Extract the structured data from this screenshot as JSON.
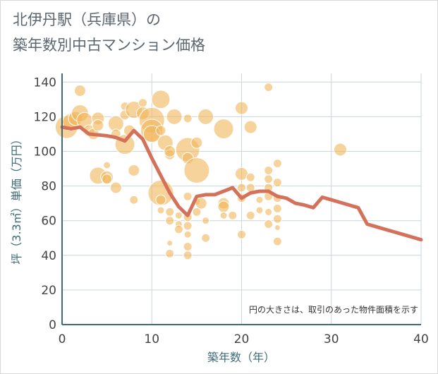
{
  "title_lines": [
    "北伊丹駅（兵庫県）の",
    "築年数別中古マンション価格"
  ],
  "chart_data": {
    "type": "scatter",
    "xlabel": "築年数（年）",
    "ylabel": "坪（3.3㎡）単価（万円）",
    "xlim": [
      0,
      40
    ],
    "ylim": [
      0,
      145
    ],
    "xticks": [
      0,
      10,
      20,
      30,
      40
    ],
    "yticks": [
      0,
      20,
      40,
      60,
      80,
      100,
      120,
      140
    ],
    "grid": true,
    "note": "円の大きさは、取引のあった物件面積を示す",
    "colors": {
      "bubble": "#f2b65a",
      "line": "#d4715a",
      "axis": "#3d6b7a"
    },
    "bubbles": [
      {
        "x": 0.5,
        "y": 114,
        "s": 16
      },
      {
        "x": 1,
        "y": 117,
        "s": 12
      },
      {
        "x": 1.5,
        "y": 119,
        "s": 10
      },
      {
        "x": 2,
        "y": 135,
        "s": 8
      },
      {
        "x": 2,
        "y": 122,
        "s": 12
      },
      {
        "x": 2.5,
        "y": 118,
        "s": 11
      },
      {
        "x": 3,
        "y": 112,
        "s": 8
      },
      {
        "x": 3.5,
        "y": 110,
        "s": 8
      },
      {
        "x": 4,
        "y": 119,
        "s": 9
      },
      {
        "x": 4,
        "y": 115,
        "s": 8
      },
      {
        "x": 4,
        "y": 86,
        "s": 12
      },
      {
        "x": 5,
        "y": 85,
        "s": 9
      },
      {
        "x": 5,
        "y": 84,
        "s": 7
      },
      {
        "x": 5,
        "y": 92,
        "s": 5
      },
      {
        "x": 6,
        "y": 79,
        "s": 8
      },
      {
        "x": 6,
        "y": 116,
        "s": 11
      },
      {
        "x": 6,
        "y": 110,
        "s": 7
      },
      {
        "x": 7,
        "y": 126,
        "s": 6
      },
      {
        "x": 7,
        "y": 121,
        "s": 7
      },
      {
        "x": 7,
        "y": 104,
        "s": 14
      },
      {
        "x": 7.5,
        "y": 112,
        "s": 8
      },
      {
        "x": 8,
        "y": 124,
        "s": 12
      },
      {
        "x": 8,
        "y": 89,
        "s": 8
      },
      {
        "x": 8,
        "y": 72,
        "s": 6
      },
      {
        "x": 9,
        "y": 128,
        "s": 6
      },
      {
        "x": 9,
        "y": 122,
        "s": 9
      },
      {
        "x": 10,
        "y": 118,
        "s": 18
      },
      {
        "x": 10,
        "y": 112,
        "s": 16
      },
      {
        "x": 10,
        "y": 110,
        "s": 12
      },
      {
        "x": 11,
        "y": 130,
        "s": 13
      },
      {
        "x": 11,
        "y": 112,
        "s": 7
      },
      {
        "x": 11,
        "y": 76,
        "s": 18
      },
      {
        "x": 11,
        "y": 72,
        "s": 7
      },
      {
        "x": 11,
        "y": 66,
        "s": 5
      },
      {
        "x": 11.5,
        "y": 105,
        "s": 11
      },
      {
        "x": 12,
        "y": 98,
        "s": 7
      },
      {
        "x": 12,
        "y": 100,
        "s": 8
      },
      {
        "x": 12,
        "y": 65,
        "s": 6
      },
      {
        "x": 12,
        "y": 60,
        "s": 6
      },
      {
        "x": 12,
        "y": 47,
        "s": 4
      },
      {
        "x": 12,
        "y": 41,
        "s": 6
      },
      {
        "x": 12.5,
        "y": 120,
        "s": 11
      },
      {
        "x": 13,
        "y": 63,
        "s": 5
      },
      {
        "x": 13,
        "y": 58,
        "s": 5
      },
      {
        "x": 13,
        "y": 55,
        "s": 6
      },
      {
        "x": 14,
        "y": 119,
        "s": 6
      },
      {
        "x": 14,
        "y": 101,
        "s": 17
      },
      {
        "x": 14,
        "y": 96,
        "s": 8
      },
      {
        "x": 14,
        "y": 74,
        "s": 6
      },
      {
        "x": 14,
        "y": 62,
        "s": 6
      },
      {
        "x": 14,
        "y": 57,
        "s": 6
      },
      {
        "x": 14,
        "y": 52,
        "s": 5
      },
      {
        "x": 14,
        "y": 45,
        "s": 6
      },
      {
        "x": 14,
        "y": 40,
        "s": 6
      },
      {
        "x": 15,
        "y": 105,
        "s": 8
      },
      {
        "x": 15,
        "y": 89,
        "s": 18
      },
      {
        "x": 15,
        "y": 71,
        "s": 5
      },
      {
        "x": 15,
        "y": 65,
        "s": 6
      },
      {
        "x": 15.5,
        "y": 70,
        "s": 8
      },
      {
        "x": 16,
        "y": 120,
        "s": 11
      },
      {
        "x": 16,
        "y": 60,
        "s": 5
      },
      {
        "x": 16,
        "y": 50,
        "s": 6
      },
      {
        "x": 18,
        "y": 113,
        "s": 14
      },
      {
        "x": 18,
        "y": 70,
        "s": 8
      },
      {
        "x": 18,
        "y": 68,
        "s": 8
      },
      {
        "x": 18,
        "y": 63,
        "s": 5
      },
      {
        "x": 19,
        "y": 63,
        "s": 6
      },
      {
        "x": 20,
        "y": 125,
        "s": 9
      },
      {
        "x": 20,
        "y": 87,
        "s": 9
      },
      {
        "x": 20,
        "y": 79,
        "s": 6
      },
      {
        "x": 20,
        "y": 73,
        "s": 6
      },
      {
        "x": 20,
        "y": 52,
        "s": 6
      },
      {
        "x": 21,
        "y": 114,
        "s": 9
      },
      {
        "x": 21,
        "y": 85,
        "s": 6
      },
      {
        "x": 21,
        "y": 79,
        "s": 6
      },
      {
        "x": 21,
        "y": 63,
        "s": 6
      },
      {
        "x": 22,
        "y": 72,
        "s": 5
      },
      {
        "x": 22,
        "y": 66,
        "s": 5
      },
      {
        "x": 23,
        "y": 137,
        "s": 6
      },
      {
        "x": 23,
        "y": 89,
        "s": 6
      },
      {
        "x": 23,
        "y": 84,
        "s": 6
      },
      {
        "x": 23,
        "y": 79,
        "s": 6
      },
      {
        "x": 23,
        "y": 74,
        "s": 6
      },
      {
        "x": 23,
        "y": 65,
        "s": 5
      },
      {
        "x": 23,
        "y": 58,
        "s": 6
      },
      {
        "x": 24,
        "y": 93,
        "s": 6
      },
      {
        "x": 24,
        "y": 82,
        "s": 6
      },
      {
        "x": 24,
        "y": 73,
        "s": 6
      },
      {
        "x": 24,
        "y": 67,
        "s": 6
      },
      {
        "x": 24,
        "y": 61,
        "s": 6
      },
      {
        "x": 24,
        "y": 56,
        "s": 4
      },
      {
        "x": 24,
        "y": 48,
        "s": 6
      },
      {
        "x": 31,
        "y": 101,
        "s": 9
      }
    ],
    "trend": {
      "x": [
        0,
        1,
        2,
        3,
        4,
        5,
        6,
        7,
        8,
        9,
        10,
        11,
        12,
        13,
        14,
        15,
        16,
        17,
        18,
        19,
        20,
        21,
        22,
        23,
        24,
        25,
        26,
        27,
        28,
        29,
        30,
        31,
        32,
        33,
        34,
        35,
        36,
        37,
        38,
        39,
        40
      ],
      "y": [
        114,
        113,
        114,
        110,
        109.5,
        109,
        108,
        106,
        112,
        107,
        96,
        86,
        76,
        68,
        63,
        74,
        75,
        75,
        77,
        79,
        73,
        76,
        77,
        77,
        74,
        73,
        70,
        69,
        67.5,
        73.5,
        72,
        70.5,
        69,
        67.5,
        58,
        56.5,
        55,
        53.5,
        52,
        50.5,
        49
      ]
    }
  }
}
